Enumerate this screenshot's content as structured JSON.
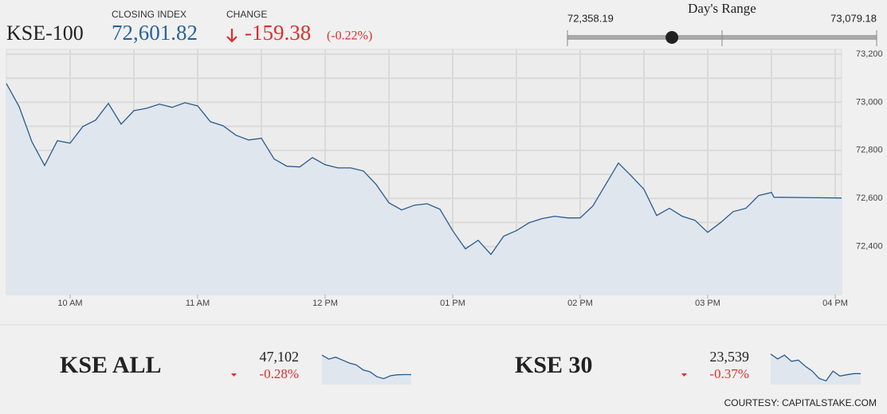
{
  "header": {
    "name": "KSE-100",
    "closing_label": "CLOSING INDEX",
    "closing_value": "72,601.82",
    "change_label": "CHANGE",
    "change": "-159.38",
    "change_pct": "(-0.22%)"
  },
  "days_range": {
    "title": "Day's Range",
    "low": {
      "value": 72358.19,
      "label": "72,358.19"
    },
    "high": {
      "value": 73079.18,
      "label": "73,079.18"
    },
    "current": 72601.82
  },
  "chart_data": [
    {
      "type": "line",
      "color": "#2a5b8c",
      "area_color": "#dfe6ee",
      "x": [
        9.5,
        9.6,
        9.7,
        9.8,
        9.9,
        10.0,
        10.1,
        10.2,
        10.3,
        10.4,
        10.5,
        10.6,
        10.7,
        10.8,
        10.9,
        11.0,
        11.1,
        11.2,
        11.3,
        11.4,
        11.5,
        11.6,
        11.7,
        11.8,
        11.9,
        12.0,
        12.1,
        12.2,
        12.3,
        12.4,
        12.5,
        12.6,
        12.7,
        12.8,
        12.9,
        13.0,
        13.1,
        13.2,
        13.3,
        13.4,
        13.5,
        13.6,
        13.7,
        13.8,
        13.9,
        14.0,
        14.1,
        14.2,
        14.3,
        14.4,
        14.5,
        14.6,
        14.7,
        14.8,
        14.9,
        15.0,
        15.1,
        15.2,
        15.3,
        15.4,
        15.5,
        15.52,
        16.05
      ],
      "values": [
        73078,
        72982,
        72836,
        72737,
        72840,
        72830,
        72899,
        72926,
        72995,
        72909,
        72965,
        72975,
        72992,
        72979,
        72998,
        72985,
        72919,
        72902,
        72863,
        72843,
        72850,
        72764,
        72734,
        72731,
        72770,
        72740,
        72727,
        72727,
        72714,
        72658,
        72582,
        72552,
        72572,
        72578,
        72555,
        72466,
        72390,
        72426,
        72367,
        72443,
        72466,
        72499,
        72516,
        72526,
        72519,
        72519,
        72569,
        72658,
        72747,
        72694,
        72638,
        72529,
        72559,
        72526,
        72509,
        72459,
        72499,
        72545,
        72559,
        72612,
        72625,
        72605,
        72601.82
      ],
      "xlim": [
        9.5,
        16.05
      ],
      "ylim": [
        72200,
        73220
      ],
      "xticks": [
        {
          "value": 10,
          "label": "10 AM"
        },
        {
          "value": 11,
          "label": "11 AM"
        },
        {
          "value": 12,
          "label": "12 PM"
        },
        {
          "value": 13,
          "label": "01 PM"
        },
        {
          "value": 14,
          "label": "02 PM"
        },
        {
          "value": 15,
          "label": "03 PM"
        },
        {
          "value": 16,
          "label": "04 PM"
        }
      ],
      "yticks": [
        {
          "value": 72400,
          "label": "72,400"
        },
        {
          "value": 72600,
          "label": "72,600"
        },
        {
          "value": 72800,
          "label": "72,800"
        },
        {
          "value": 73000,
          "label": "73,000"
        },
        {
          "value": 73200,
          "label": "73,200"
        }
      ],
      "xgrid": [
        10.5,
        11.5,
        12.5,
        13.5,
        14.5,
        15.5
      ],
      "ygrid": [
        72300,
        72500,
        72700,
        72900,
        73100
      ],
      "grid": true
    },
    {
      "type": "line",
      "title": "KSE ALL",
      "value_label": "47,102",
      "change_label": "-0.28%",
      "color": "#2a5b8c",
      "area_color": "#dfe6ee",
      "x": [
        9.5,
        10,
        10.5,
        11,
        11.5,
        12,
        12.5,
        13,
        13.5,
        14,
        14.5,
        15,
        15.5,
        16
      ],
      "values": [
        47300,
        47260,
        47280,
        47250,
        47220,
        47200,
        47150,
        47130,
        47080,
        47060,
        47090,
        47100,
        47102,
        47102
      ],
      "xlim": [
        9.5,
        16
      ],
      "ylim": [
        47000,
        47350
      ]
    },
    {
      "type": "line",
      "title": "KSE 30",
      "value_label": "23,539",
      "change_label": "-0.37%",
      "color": "#2a5b8c",
      "area_color": "#dfe6ee",
      "x": [
        9.5,
        10,
        10.5,
        11,
        11.5,
        12,
        12.5,
        13,
        13.5,
        14,
        14.5,
        15,
        15.5,
        16
      ],
      "values": [
        23700,
        23660,
        23690,
        23640,
        23650,
        23600,
        23560,
        23500,
        23480,
        23560,
        23520,
        23530,
        23539,
        23539
      ],
      "xlim": [
        9.5,
        16
      ],
      "ylim": [
        23450,
        23730
      ]
    }
  ],
  "credit": "COURTESY: CAPITALSTAKE.COM"
}
